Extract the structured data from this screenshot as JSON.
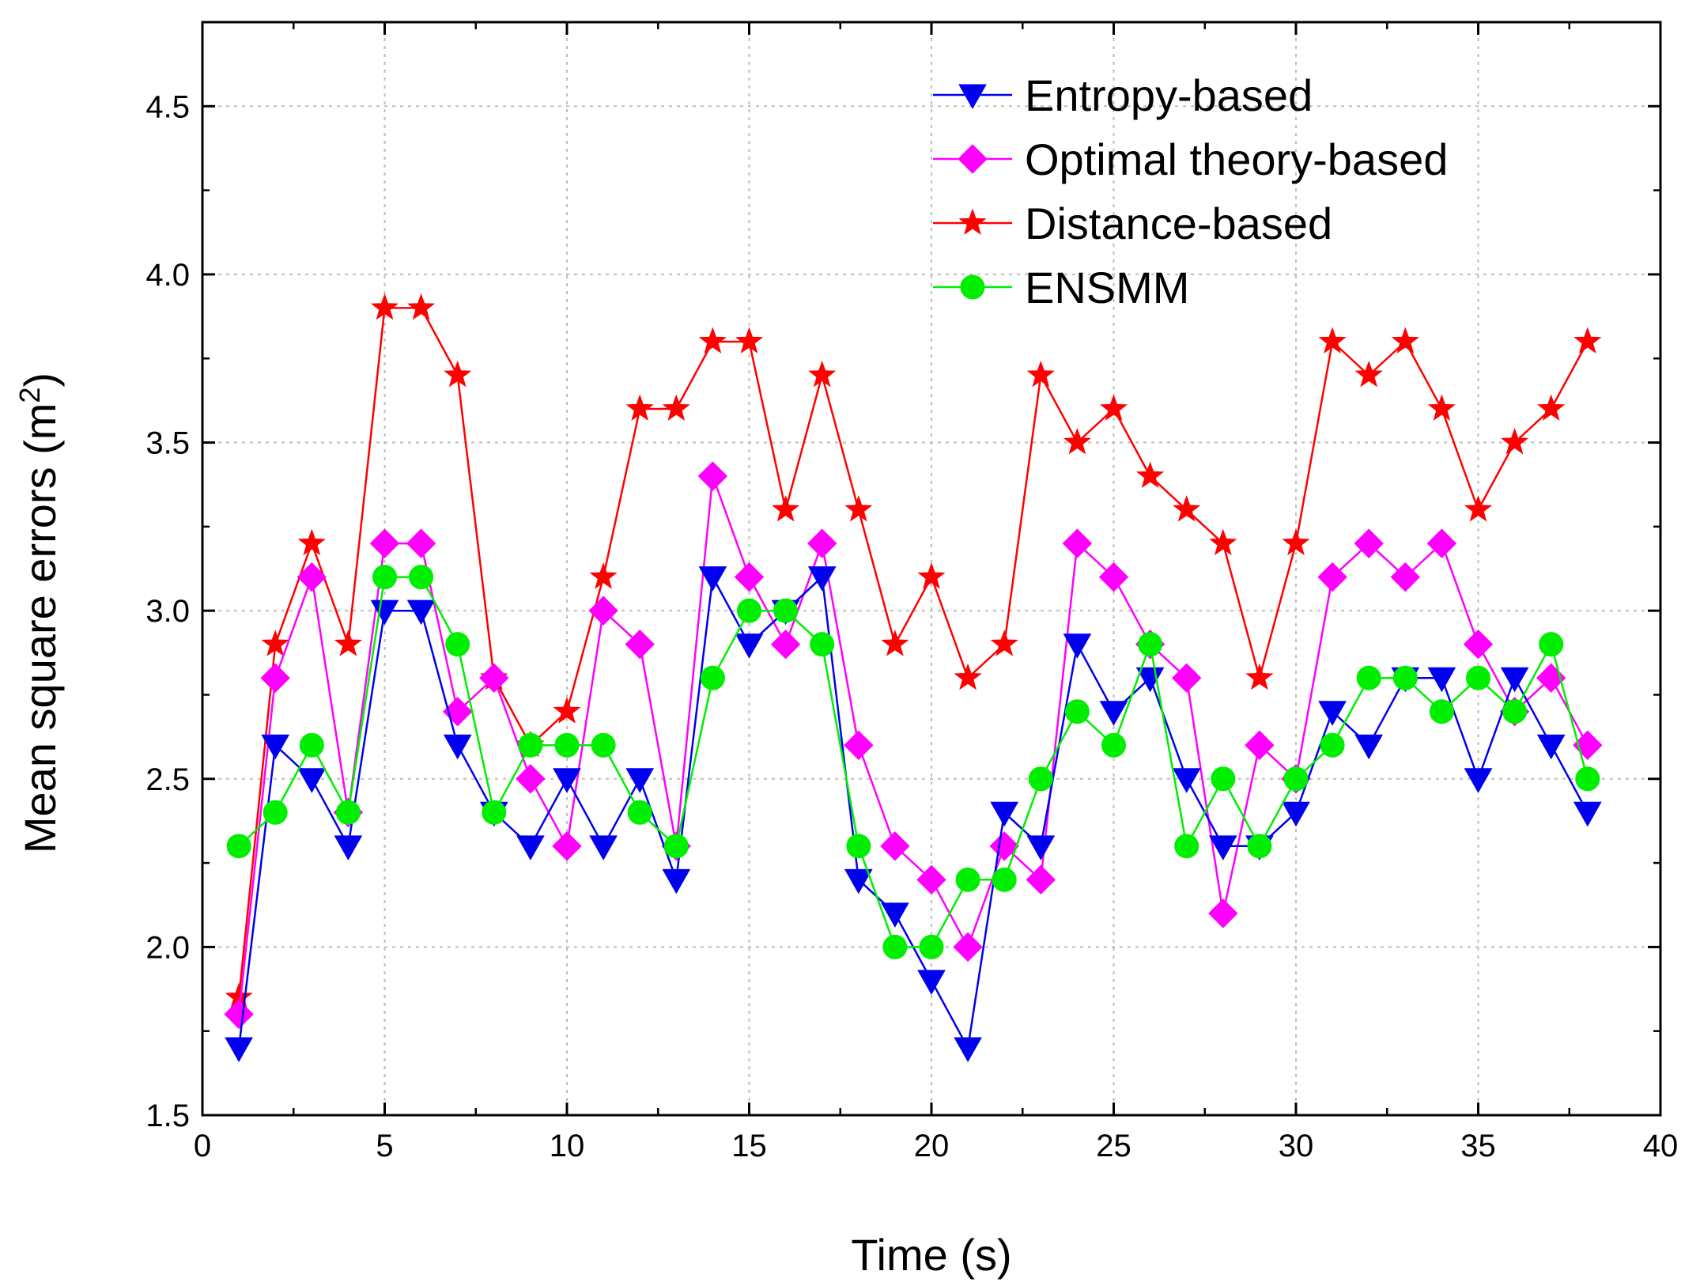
{
  "chart_data": {
    "type": "line",
    "xlabel": "Time (s)",
    "ylabel": {
      "text": "Mean square errors (m",
      "superscript": "2",
      "suffix": ")"
    },
    "xlim": [
      0,
      40
    ],
    "ylim": [
      1.5,
      4.75
    ],
    "xticks": [
      "0",
      "5",
      "10",
      "15",
      "20",
      "25",
      "30",
      "35",
      "40"
    ],
    "yticks": [
      "1.5",
      "2.0",
      "2.5",
      "3.0",
      "3.5",
      "4.0",
      "4.5"
    ],
    "grid": true,
    "legend_position": "top-right",
    "x": [
      1,
      2,
      3,
      4,
      5,
      6,
      7,
      8,
      9,
      10,
      11,
      12,
      13,
      14,
      15,
      16,
      17,
      18,
      19,
      20,
      21,
      22,
      23,
      24,
      25,
      26,
      27,
      28,
      29,
      30,
      31,
      32,
      33,
      34,
      35,
      36,
      37,
      38
    ],
    "series": [
      {
        "name": "Entropy-based",
        "color": "#0000ee",
        "marker": "triangle-down",
        "values": [
          1.7,
          2.6,
          2.5,
          2.3,
          3.0,
          3.0,
          2.6,
          2.4,
          2.3,
          2.5,
          2.3,
          2.5,
          2.2,
          3.1,
          2.9,
          3.0,
          3.1,
          2.2,
          2.1,
          1.9,
          1.7,
          2.4,
          2.3,
          2.9,
          2.7,
          2.8,
          2.5,
          2.3,
          2.3,
          2.4,
          2.7,
          2.6,
          2.8,
          2.8,
          2.5,
          2.8,
          2.6,
          2.4
        ]
      },
      {
        "name": "Optimal theory-based",
        "color": "#ff00ff",
        "marker": "diamond",
        "values": [
          1.8,
          2.8,
          3.1,
          2.4,
          3.2,
          3.2,
          2.7,
          2.8,
          2.5,
          2.3,
          3.0,
          2.9,
          2.3,
          3.4,
          3.1,
          2.9,
          3.2,
          2.6,
          2.3,
          2.2,
          2.0,
          2.3,
          2.2,
          3.2,
          3.1,
          2.9,
          2.8,
          2.1,
          2.6,
          2.5,
          3.1,
          3.2,
          3.1,
          3.2,
          2.9,
          2.7,
          2.8,
          2.6
        ]
      },
      {
        "name": "Distance-based",
        "color": "#ff0000",
        "marker": "star",
        "values": [
          1.85,
          2.9,
          3.2,
          2.9,
          3.9,
          3.9,
          3.7,
          2.8,
          2.6,
          2.7,
          3.1,
          3.6,
          3.6,
          3.8,
          3.8,
          3.3,
          3.7,
          3.3,
          2.9,
          3.1,
          2.8,
          2.9,
          3.7,
          3.5,
          3.6,
          3.4,
          3.3,
          3.2,
          2.8,
          3.2,
          3.8,
          3.7,
          3.8,
          3.6,
          3.3,
          3.5,
          3.6,
          3.8
        ]
      },
      {
        "name": "ENSMM",
        "color": "#00ee00",
        "marker": "circle",
        "values": [
          2.3,
          2.4,
          2.6,
          2.4,
          3.1,
          3.1,
          2.9,
          2.4,
          2.6,
          2.6,
          2.6,
          2.4,
          2.3,
          2.8,
          3.0,
          3.0,
          2.9,
          2.3,
          2.0,
          2.0,
          2.2,
          2.2,
          2.5,
          2.7,
          2.6,
          2.9,
          2.3,
          2.5,
          2.3,
          2.5,
          2.6,
          2.8,
          2.8,
          2.7,
          2.8,
          2.7,
          2.9,
          2.5
        ]
      }
    ]
  }
}
